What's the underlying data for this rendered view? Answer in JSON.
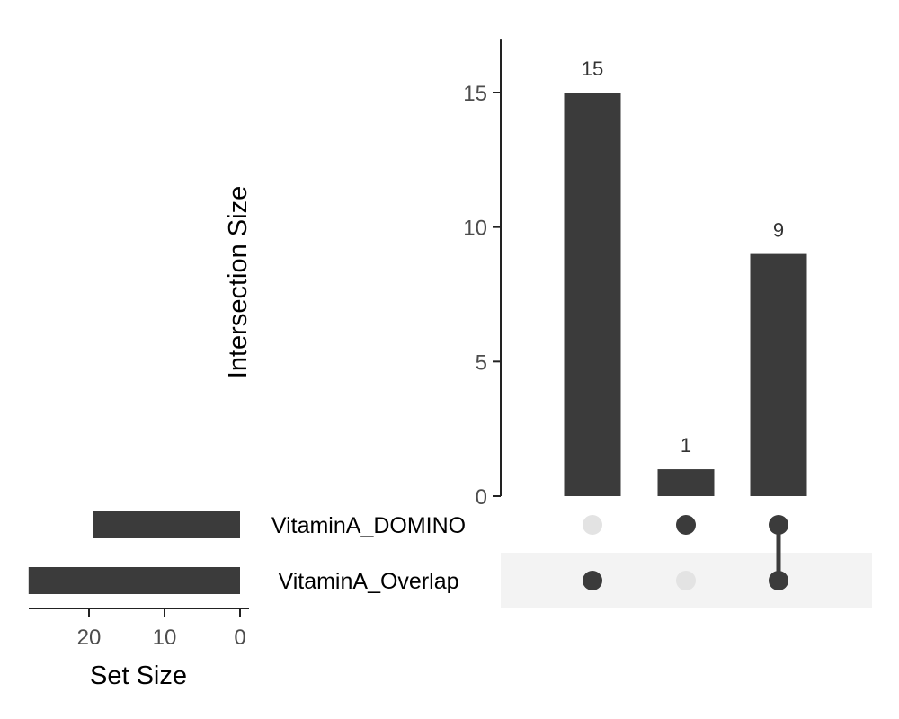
{
  "chart_data": {
    "type": "upset",
    "bar_color": "#3b3b3b",
    "intersection": {
      "ylabel": "Intersection Size",
      "ylim": [
        0,
        17
      ],
      "yticks": [
        0,
        5,
        10,
        15
      ],
      "ytick_labels": [
        "0",
        "5",
        "10",
        "15"
      ],
      "columns": [
        {
          "value": 15,
          "label": "15",
          "members": [
            "VitaminA_Overlap"
          ]
        },
        {
          "value": 1,
          "label": "1",
          "members": [
            "VitaminA_DOMINO"
          ]
        },
        {
          "value": 9,
          "label": "9",
          "members": [
            "VitaminA_DOMINO",
            "VitaminA_Overlap"
          ]
        }
      ]
    },
    "sets": {
      "xlabel": "Set Size",
      "xlim": [
        0,
        29
      ],
      "xticks": [
        20,
        10,
        0
      ],
      "xtick_labels": [
        "20",
        "10",
        "0"
      ],
      "items": [
        {
          "name": "VitaminA_DOMINO",
          "size": 19.5
        },
        {
          "name": "VitaminA_Overlap",
          "size": 28
        }
      ]
    },
    "colors": {
      "dot_active": "#3b3b3b",
      "dot_inactive": "#e3e3e3",
      "row_stripe": "#f3f3f3"
    }
  }
}
